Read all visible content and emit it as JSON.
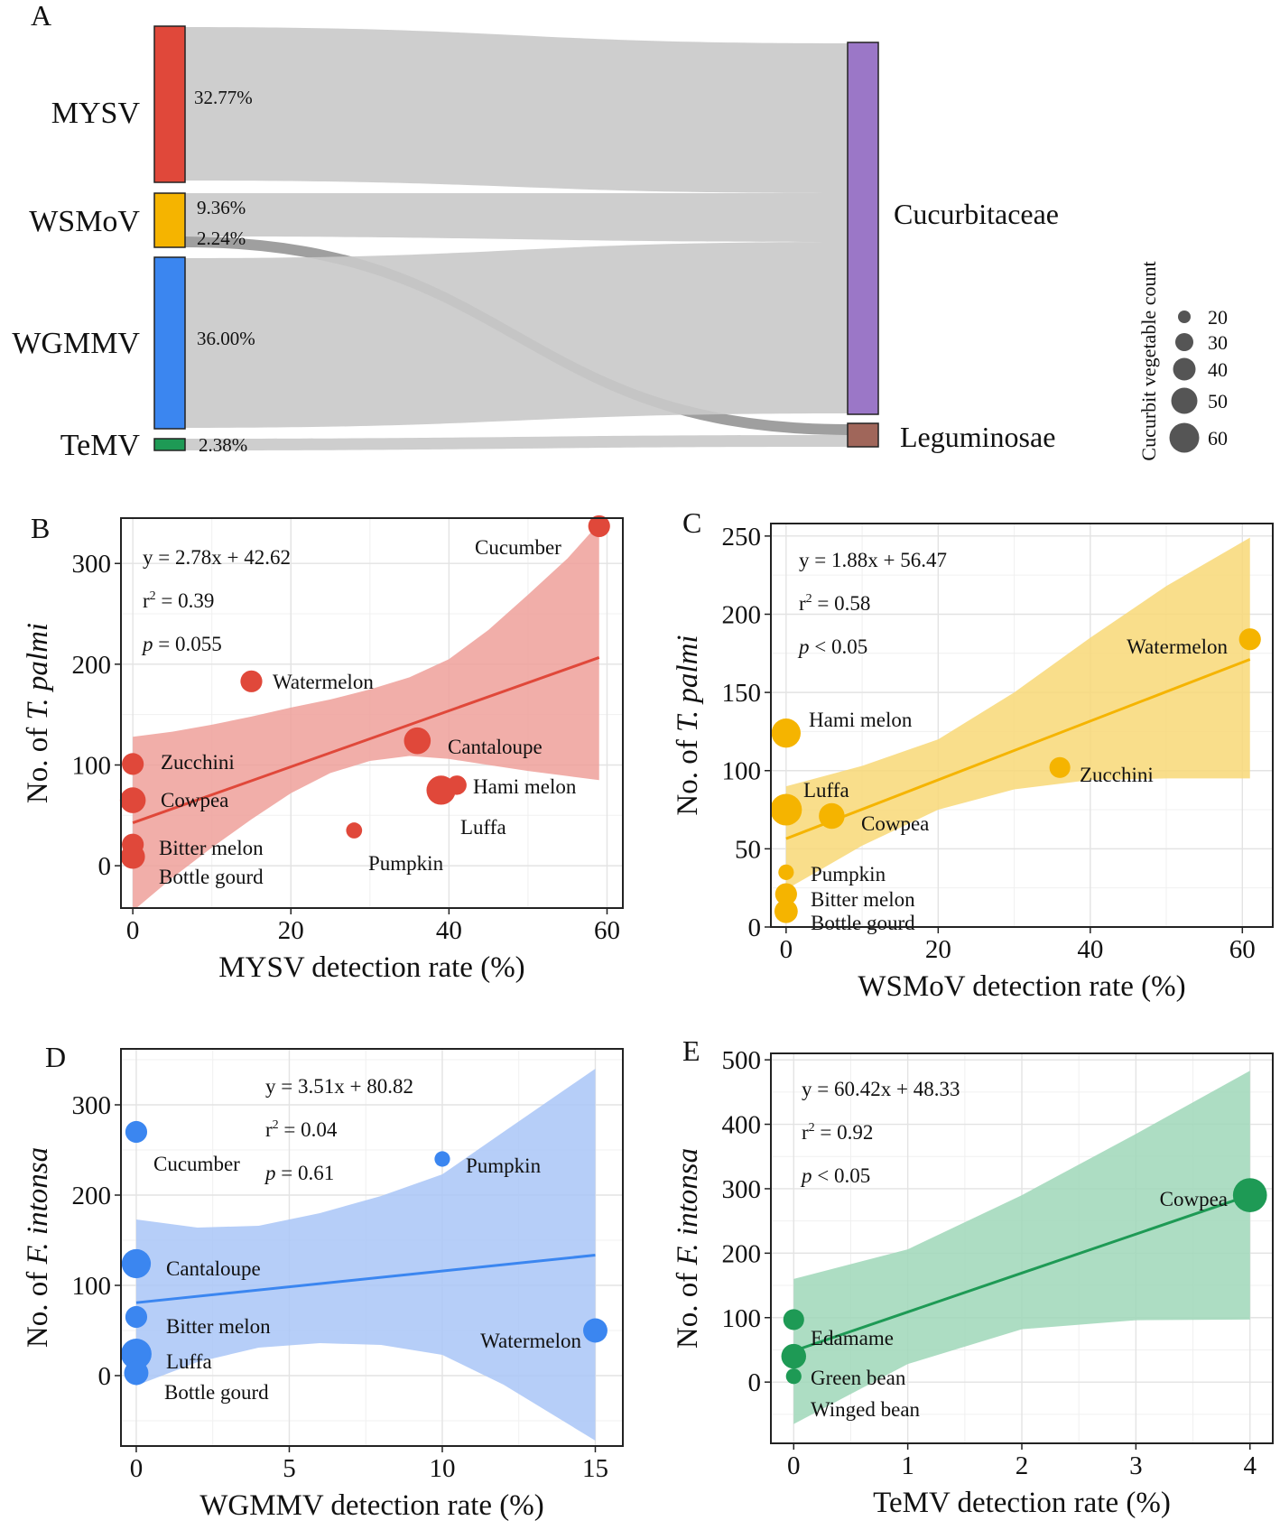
{
  "chart_data": [
    {
      "panel": "A",
      "type": "sankey",
      "sources": [
        {
          "name": "MYSV",
          "color": "#e0483a",
          "share": 0.3277
        },
        {
          "name": "WSMoV",
          "color": "#f5b400",
          "share": 0.116
        },
        {
          "name": "WGMMV",
          "color": "#3b86f0",
          "share": 0.36
        },
        {
          "name": "TeMV",
          "color": "#1e9a55",
          "share": 0.0238
        }
      ],
      "targets": [
        {
          "name": "Cucurbitaceae",
          "color": "#9b77c7"
        },
        {
          "name": "Leguminosae",
          "color": "#a0665a"
        }
      ],
      "flows": [
        {
          "source": "MYSV",
          "target": "Cucurbitaceae",
          "label": "32.77%"
        },
        {
          "source": "WSMoV",
          "target": "Cucurbitaceae",
          "label": "9.36%"
        },
        {
          "source": "WSMoV",
          "target": "Leguminosae",
          "label": "2.24%"
        },
        {
          "source": "WGMMV",
          "target": "Cucurbitaceae",
          "label": "36.00%"
        },
        {
          "source": "TeMV",
          "target": "Leguminosae",
          "label": "2.38%"
        }
      ],
      "size_legend": {
        "title": "Cucurbit vegetable count",
        "values": [
          "20",
          "30",
          "40",
          "50",
          "60"
        ]
      }
    },
    {
      "panel": "B",
      "type": "scatter",
      "color": "#e0483a",
      "band_color": "#eea09a",
      "xlabel": "MYSV detection rate (%)",
      "ylabel_pre": "No. of ",
      "ylabel_species": "T. palmi",
      "xlim": [
        -1.5,
        62
      ],
      "ylim": [
        -42,
        345
      ],
      "xticks": [
        0,
        20,
        40,
        60
      ],
      "yticks": [
        0,
        100,
        200,
        300
      ],
      "equation": "y = 2.78x + 42.62",
      "r2": "0.39",
      "p_rel": "= 0.055",
      "fit": {
        "slope": 2.78,
        "intercept": 42.62,
        "x_range": [
          0,
          59
        ]
      },
      "band": [
        [
          0,
          -45,
          128
        ],
        [
          5,
          -12,
          133
        ],
        [
          10,
          18,
          140
        ],
        [
          15,
          46,
          148
        ],
        [
          20,
          72,
          157
        ],
        [
          25,
          92,
          165
        ],
        [
          30,
          104,
          175
        ],
        [
          35,
          109,
          187
        ],
        [
          40,
          106,
          205
        ],
        [
          45,
          100,
          234
        ],
        [
          50,
          94,
          269
        ],
        [
          55,
          89,
          305
        ],
        [
          59,
          85,
          340
        ]
      ],
      "points": [
        {
          "label": "Cucumber",
          "x": 59,
          "y": 337,
          "size": 30
        },
        {
          "label": "Watermelon",
          "x": 15,
          "y": 183,
          "size": 30
        },
        {
          "label": "Cantaloupe",
          "x": 36,
          "y": 124,
          "size": 40
        },
        {
          "label": "Hami melon",
          "x": 41,
          "y": 80,
          "size": 25
        },
        {
          "label": "Luffa",
          "x": 39,
          "y": 75,
          "size": 45
        },
        {
          "label": "Zucchini",
          "x": 0,
          "y": 101,
          "size": 30
        },
        {
          "label": "Cowpea",
          "x": 0,
          "y": 65,
          "size": 38
        },
        {
          "label": "Bitter melon",
          "x": 0,
          "y": 21,
          "size": 30
        },
        {
          "label": "Bottle gourd",
          "x": 0,
          "y": 9,
          "size": 35
        },
        {
          "label": "Pumpkin",
          "x": 28,
          "y": 35,
          "size": 18
        }
      ]
    },
    {
      "panel": "C",
      "type": "scatter",
      "color": "#f5b400",
      "band_color": "#f8d877",
      "xlabel": "WSMoV detection rate (%)",
      "ylabel_pre": "No. of ",
      "ylabel_species": "T. palmi",
      "xlim": [
        -2,
        64
      ],
      "ylim": [
        0,
        258
      ],
      "xticks": [
        0,
        20,
        40,
        60
      ],
      "yticks": [
        0,
        50,
        100,
        150,
        200,
        250
      ],
      "equation": "y = 1.88x + 56.47",
      "r2": "0.58",
      "p_rel": "< 0.05",
      "fit": {
        "slope": 1.88,
        "intercept": 56.47,
        "x_range": [
          0,
          61
        ]
      },
      "band": [
        [
          0,
          24,
          90
        ],
        [
          10,
          52,
          103
        ],
        [
          20,
          75,
          120
        ],
        [
          30,
          88,
          150
        ],
        [
          40,
          94,
          185
        ],
        [
          50,
          95,
          218
        ],
        [
          61,
          95,
          249
        ]
      ],
      "points": [
        {
          "label": "Watermelon",
          "x": 61,
          "y": 184,
          "size": 30
        },
        {
          "label": "Hami melon",
          "x": 0,
          "y": 124,
          "size": 45
        },
        {
          "label": "Zucchini",
          "x": 36,
          "y": 102,
          "size": 28
        },
        {
          "label": "Luffa",
          "x": 0,
          "y": 75,
          "size": 50
        },
        {
          "label": "Cowpea",
          "x": 6,
          "y": 71,
          "size": 38
        },
        {
          "label": "Pumpkin",
          "x": 0,
          "y": 35,
          "size": 17
        },
        {
          "label": "Bitter melon",
          "x": 0,
          "y": 21,
          "size": 30
        },
        {
          "label": "Bottle gourd",
          "x": 0,
          "y": 10,
          "size": 33
        }
      ]
    },
    {
      "panel": "D",
      "type": "scatter",
      "color": "#3b86f0",
      "band_color": "#a9c6f7",
      "xlabel": "WGMMV detection rate (%)",
      "ylabel_pre": "No. of ",
      "ylabel_species": "F. intonsa",
      "xlim": [
        -0.5,
        15.9
      ],
      "ylim": [
        -78,
        362
      ],
      "xticks": [
        0,
        5,
        10,
        15
      ],
      "yticks": [
        0,
        100,
        200,
        300
      ],
      "equation": "y = 3.51x + 80.82",
      "r2": "0.04",
      "p_rel": "= 0.61",
      "fit": {
        "slope": 3.51,
        "intercept": 80.82,
        "x_range": [
          0,
          15
        ]
      },
      "band": [
        [
          0,
          -11,
          173
        ],
        [
          2,
          15,
          164
        ],
        [
          4,
          31,
          166
        ],
        [
          6,
          36,
          180
        ],
        [
          8,
          34,
          199
        ],
        [
          10,
          23,
          223
        ],
        [
          12,
          -10,
          270
        ],
        [
          15,
          -72,
          340
        ]
      ],
      "points": [
        {
          "label": "Cucumber",
          "x": 0,
          "y": 270,
          "size": 30
        },
        {
          "label": "Pumpkin",
          "x": 10,
          "y": 240,
          "size": 17
        },
        {
          "label": "Cantaloupe",
          "x": 0,
          "y": 124,
          "size": 45
        },
        {
          "label": "Bitter melon",
          "x": 0,
          "y": 65,
          "size": 30
        },
        {
          "label": "Watermelon",
          "x": 15,
          "y": 50,
          "size": 35
        },
        {
          "label": "Luffa",
          "x": 0,
          "y": 24,
          "size": 48
        },
        {
          "label": "Bottle gourd",
          "x": 0,
          "y": 3,
          "size": 35
        }
      ]
    },
    {
      "panel": "E",
      "type": "scatter",
      "color": "#1e9a55",
      "band_color": "#9fd7b8",
      "xlabel": "TeMV detection rate (%)",
      "ylabel_pre": "No. of ",
      "ylabel_species": "F. intonsa",
      "xlim": [
        -0.2,
        4.2
      ],
      "ylim": [
        -95,
        510
      ],
      "xticks": [
        0,
        1,
        2,
        3,
        4
      ],
      "yticks": [
        0,
        100,
        200,
        300,
        400,
        500
      ],
      "equation": "y = 60.42x + 48.33",
      "r2": "0.92",
      "p_rel": "< 0.05",
      "fit": {
        "slope": 60.42,
        "intercept": 48.33,
        "x_range": [
          0,
          4
        ]
      },
      "band": [
        [
          0,
          -65,
          160
        ],
        [
          1,
          28,
          206
        ],
        [
          2,
          82,
          290
        ],
        [
          3,
          96,
          385
        ],
        [
          4,
          97,
          483
        ]
      ],
      "points": [
        {
          "label": "Cowpea",
          "x": 4,
          "y": 290,
          "size": 55
        },
        {
          "label": "Edamame",
          "x": 0,
          "y": 97,
          "size": 28
        },
        {
          "label": "Green bean",
          "x": 0,
          "y": 40,
          "size": 36
        },
        {
          "label": "Winged bean",
          "x": 0,
          "y": 9,
          "size": 17
        }
      ]
    }
  ]
}
